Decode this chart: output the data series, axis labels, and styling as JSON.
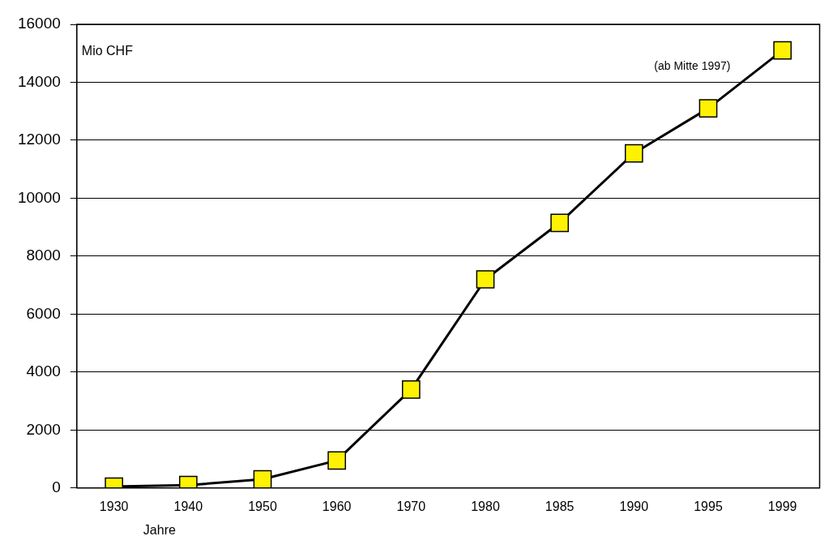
{
  "chart_data": {
    "type": "line",
    "xlabel": "Jahre",
    "ylabel": "Mio CHF",
    "annotations": [
      "(ab Mitte 1997)"
    ],
    "categories": [
      "1930",
      "1940",
      "1950",
      "1960",
      "1970",
      "1980",
      "1985",
      "1990",
      "1995",
      "1999"
    ],
    "series": [
      {
        "color": "#000000",
        "values": [
          50,
          100,
          300,
          950,
          3400,
          7200,
          9150,
          11550,
          13100,
          15100
        ]
      }
    ],
    "ylim": [
      0,
      16000
    ],
    "yticks": [
      0,
      2000,
      4000,
      6000,
      8000,
      10000,
      12000,
      14000,
      16000
    ],
    "grid": "y",
    "legend": false,
    "marker": "square",
    "line_style": "solid"
  }
}
